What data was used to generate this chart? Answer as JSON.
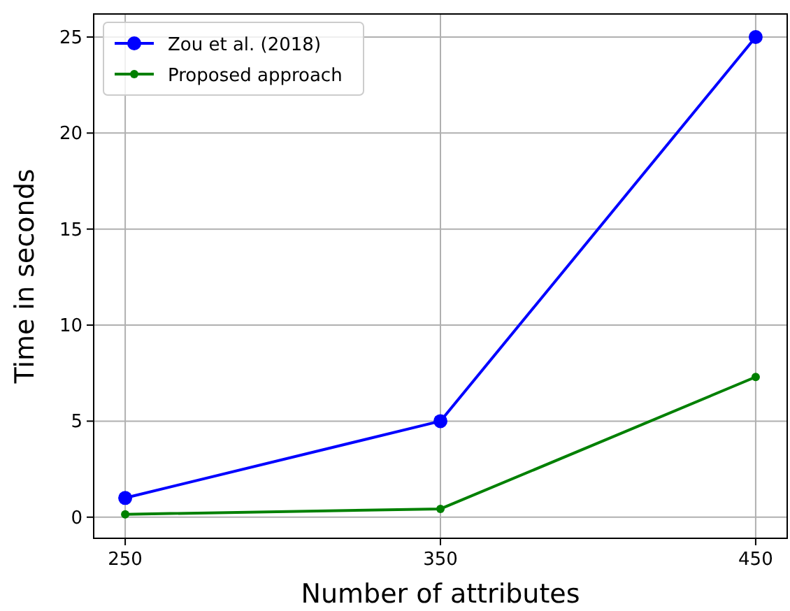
{
  "chart_data": {
    "type": "line",
    "xlabel": "Number of attributes",
    "ylabel": "Time in seconds",
    "x": [
      250,
      350,
      450
    ],
    "series": [
      {
        "name": "Zou et al. (2018)",
        "color": "#0000ff",
        "values": [
          1,
          5,
          25
        ]
      },
      {
        "name": "Proposed approach",
        "color": "#008000",
        "values": [
          0.15,
          0.43,
          7.3
        ]
      }
    ],
    "xlim": [
      240,
      460
    ],
    "xticks": [
      250,
      350,
      450
    ],
    "ylim": [
      -1.1,
      26.2
    ],
    "yticks": [
      0,
      5,
      10,
      15,
      20,
      25
    ],
    "grid": true,
    "legend": "top left",
    "marker": "circle",
    "line_style": "solid"
  }
}
